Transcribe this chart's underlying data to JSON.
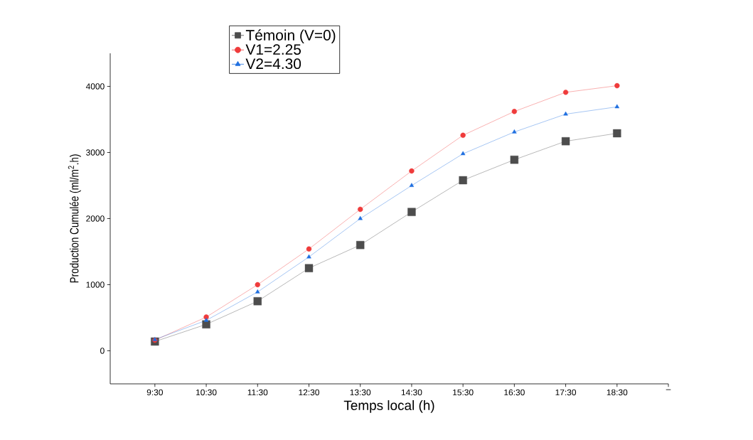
{
  "chart_data": {
    "type": "line",
    "xlabel": "Temps local (h)",
    "ylabel": "Production Cumulée (ml/m$^{2}$.h)",
    "x": [
      9.5,
      10.5,
      11.5,
      12.5,
      13.5,
      14.5,
      15.5,
      16.5,
      17.5,
      18.5
    ],
    "xlim": [
      8.63,
      19.5
    ],
    "ylim": [
      -500,
      4500
    ],
    "xticks": [
      {
        "value": 9.5,
        "label": "9:30"
      },
      {
        "value": 10.5,
        "label": "10:30"
      },
      {
        "value": 11.5,
        "label": "11:30"
      },
      {
        "value": 12.5,
        "label": "12:30"
      },
      {
        "value": 13.5,
        "label": "13:30"
      },
      {
        "value": 14.5,
        "label": "14:30"
      },
      {
        "value": 15.5,
        "label": "15:30"
      },
      {
        "value": 16.5,
        "label": "16:30"
      },
      {
        "value": 17.5,
        "label": "17:30"
      },
      {
        "value": 18.5,
        "label": "18:30"
      },
      {
        "value": 19.5,
        "label": "–"
      }
    ],
    "yticks": [
      0,
      1000,
      2000,
      3000,
      4000
    ],
    "series": [
      {
        "name": "Témoin (V=0)",
        "color": "#4d4d4d",
        "marker": "square",
        "values": [
          140,
          400,
          750,
          1250,
          1600,
          2100,
          2580,
          2890,
          3170,
          3290
        ]
      },
      {
        "name": "V1=2.25",
        "color": "#ef3b3b",
        "marker": "circle",
        "values": [
          160,
          510,
          1000,
          1540,
          2140,
          2720,
          3260,
          3620,
          3910,
          4010
        ]
      },
      {
        "name": "V2=4.30",
        "color": "#1f6fe0",
        "marker": "triangle",
        "values": [
          170,
          460,
          890,
          1420,
          2000,
          2500,
          2980,
          3310,
          3580,
          3690
        ]
      }
    ],
    "legend": "top",
    "grid": false
  }
}
